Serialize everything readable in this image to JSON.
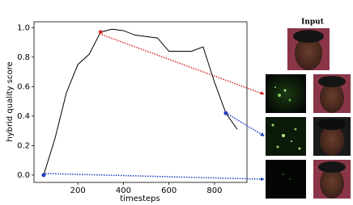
{
  "chart_data": {
    "type": "line",
    "x": [
      50,
      100,
      150,
      200,
      250,
      300,
      350,
      400,
      450,
      500,
      550,
      600,
      650,
      700,
      750,
      800,
      850,
      900
    ],
    "values": [
      0.0,
      0.25,
      0.56,
      0.75,
      0.82,
      0.97,
      0.99,
      0.98,
      0.95,
      0.94,
      0.93,
      0.84,
      0.84,
      0.84,
      0.87,
      0.63,
      0.42,
      0.31
    ],
    "color": "#000000",
    "markers": [
      {
        "x": 300,
        "y": 0.97,
        "color": "#d62728"
      },
      {
        "x": 850,
        "y": 0.42,
        "color": "#1f3fbf"
      },
      {
        "x": 50,
        "y": 0.0,
        "color": "#1f3fbf"
      }
    ],
    "xlabel": "timesteps",
    "ylabel": "hybrid quality score",
    "xlim": [
      7.5,
      942.5
    ],
    "xticks": [
      200,
      400,
      600,
      800
    ],
    "ylim": [
      -0.05,
      1.04
    ],
    "yticks": [
      {
        "value": 0,
        "label": "0.0"
      },
      {
        "value": 0.2,
        "label": "0.2"
      },
      {
        "value": 0.4,
        "label": "0.4"
      },
      {
        "value": 0.6,
        "label": "0.6"
      },
      {
        "value": 0.8,
        "label": "0.8"
      },
      {
        "value": 1,
        "label": "1.0"
      }
    ],
    "image_label": "Input"
  }
}
